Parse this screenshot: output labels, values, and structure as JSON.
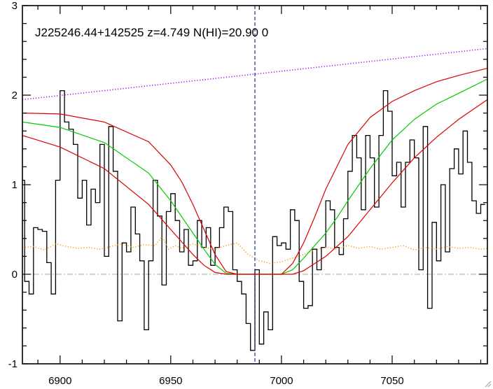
{
  "chart_data": {
    "type": "line",
    "title": "J225246.44+142525 z=4.749 N(HI)=20.90 0",
    "xlabel": "",
    "ylabel": "",
    "xlim": [
      6883,
      7093
    ],
    "ylim": [
      -1,
      3
    ],
    "x_ticks": [
      6900,
      6950,
      7000,
      7050
    ],
    "y_ticks": [
      -1,
      0,
      1,
      2,
      3
    ],
    "grid": false,
    "legend": "none",
    "vline_x": 6988,
    "series": [
      {
        "role": "flux",
        "style": "steps",
        "color": "#000000",
        "x": [
          6883,
          6885,
          6887,
          6889,
          6891,
          6893,
          6895,
          6897,
          6899,
          6901,
          6903,
          6905,
          6907,
          6909,
          6911,
          6913,
          6915,
          6917,
          6919,
          6921,
          6923,
          6925,
          6927,
          6929,
          6931,
          6933,
          6935,
          6937,
          6939,
          6941,
          6943,
          6945,
          6947,
          6949,
          6951,
          6953,
          6955,
          6957,
          6959,
          6961,
          6963,
          6965,
          6967,
          6969,
          6971,
          6973,
          6975,
          6977,
          6979,
          6981,
          6983,
          6985,
          6987,
          6989,
          6991,
          6993,
          6995,
          6997,
          6999,
          7001,
          7003,
          7005,
          7007,
          7009,
          7011,
          7013,
          7015,
          7017,
          7019,
          7021,
          7023,
          7025,
          7027,
          7029,
          7031,
          7033,
          7035,
          7037,
          7039,
          7041,
          7043,
          7045,
          7047,
          7049,
          7051,
          7053,
          7055,
          7057,
          7059,
          7061,
          7063,
          7065,
          7067,
          7069,
          7071,
          7073,
          7075,
          7077,
          7079,
          7081,
          7083,
          7085,
          7087,
          7089,
          7091
        ],
        "y": [
          1.05,
          -0.08,
          -0.22,
          0.52,
          0.5,
          0.48,
          0.13,
          -0.22,
          1.05,
          2.05,
          1.7,
          1.62,
          1.45,
          0.85,
          1.05,
          0.55,
          0.95,
          0.8,
          1.45,
          0.2,
          1.65,
          1.15,
          -0.52,
          0.35,
          0.25,
          0.75,
          0.45,
          0.15,
          -0.62,
          0.15,
          1.05,
          0.65,
          -0.12,
          0.7,
          0.9,
          0.6,
          0.25,
          0.5,
          0.1,
          0.15,
          0.6,
          0.3,
          0.52,
          0.1,
          0.3,
          0.52,
          0.75,
          0.7,
          0.05,
          -0.08,
          -0.22,
          -0.55,
          -0.85,
          0.05,
          -0.78,
          -0.42,
          -0.62,
          0.42,
          0.32,
          0.35,
          0.28,
          0.72,
          0.6,
          -0.08,
          -0.38,
          -0.35,
          0.28,
          0.05,
          0.3,
          0.82,
          0.72,
          0.3,
          0.22,
          0.62,
          1.15,
          1.55,
          1.3,
          0.72,
          1.55,
          1.3,
          0.75,
          1.55,
          2.05,
          1.82,
          1.1,
          1.25,
          0.75,
          1.25,
          1.5,
          1.3,
          0.05,
          1.65,
          -0.38,
          0.58,
          0.15,
          1.0,
          0.25,
          1.18,
          1.4,
          1.12,
          1.6,
          1.25,
          0.82,
          0.68,
          0.78
        ]
      },
      {
        "role": "error",
        "style": "dotted",
        "color": "#ff9900",
        "x": [
          6883,
          6888,
          6893,
          6898,
          6903,
          6908,
          6913,
          6918,
          6923,
          6928,
          6933,
          6938,
          6943,
          6946,
          6949,
          6952,
          6955,
          6960,
          6965,
          6970,
          6975,
          6980,
          6985,
          6990,
          6995,
          7000,
          7005,
          7010,
          7015,
          7020,
          7025,
          7030,
          7035,
          7040,
          7045,
          7050,
          7055,
          7060,
          7065,
          7070,
          7075,
          7080,
          7085,
          7090,
          7093
        ],
        "y": [
          0.3,
          0.31,
          0.27,
          0.34,
          0.31,
          0.29,
          0.3,
          0.28,
          0.31,
          0.34,
          0.3,
          0.33,
          0.32,
          0.42,
          0.28,
          0.32,
          0.29,
          0.34,
          0.3,
          0.28,
          0.32,
          0.35,
          0.22,
          0.15,
          0.12,
          0.14,
          0.18,
          0.22,
          0.27,
          0.3,
          0.28,
          0.32,
          0.29,
          0.31,
          0.28,
          0.3,
          0.32,
          0.27,
          0.3,
          0.28,
          0.31,
          0.29,
          0.3,
          0.28,
          0.29
        ]
      },
      {
        "role": "continuum",
        "style": "dotted",
        "color": "#9900ff",
        "x": [
          6883,
          7093
        ],
        "y": [
          1.95,
          2.52
        ]
      },
      {
        "role": "model",
        "style": "solid",
        "color": "#00cc00",
        "x": [
          6883,
          6900,
          6920,
          6940,
          6950,
          6955,
          6960,
          6965,
          6970,
          6975,
          6980,
          6990,
          7000,
          7005,
          7010,
          7015,
          7020,
          7025,
          7030,
          7035,
          7040,
          7050,
          7060,
          7070,
          7080,
          7093
        ],
        "y": [
          1.7,
          1.64,
          1.47,
          1.13,
          0.82,
          0.64,
          0.46,
          0.28,
          0.11,
          0.01,
          0.0,
          0.0,
          0.0,
          0.05,
          0.18,
          0.32,
          0.46,
          0.63,
          0.82,
          1.0,
          1.18,
          1.5,
          1.73,
          1.9,
          2.02,
          2.18
        ]
      },
      {
        "role": "upper",
        "style": "solid",
        "color": "#dd0000",
        "x": [
          6883,
          6900,
          6920,
          6940,
          6950,
          6955,
          6960,
          6965,
          6970,
          6975,
          6980,
          6990,
          7000,
          7005,
          7010,
          7015,
          7020,
          7025,
          7030,
          7040,
          7050,
          7060,
          7070,
          7080,
          7093
        ],
        "y": [
          1.8,
          1.79,
          1.7,
          1.48,
          1.22,
          1.03,
          0.78,
          0.5,
          0.22,
          0.03,
          0.0,
          0.0,
          0.0,
          0.12,
          0.35,
          0.64,
          0.95,
          1.2,
          1.45,
          1.75,
          1.93,
          2.05,
          2.15,
          2.22,
          2.3
        ]
      },
      {
        "role": "lower",
        "style": "solid",
        "color": "#dd0000",
        "x": [
          6883,
          6900,
          6920,
          6940,
          6950,
          6955,
          6960,
          6965,
          6970,
          6975,
          6980,
          6990,
          7000,
          7005,
          7010,
          7020,
          7030,
          7040,
          7050,
          7060,
          7070,
          7080,
          7093
        ],
        "y": [
          1.55,
          1.42,
          1.18,
          0.78,
          0.5,
          0.36,
          0.22,
          0.1,
          0.02,
          0.0,
          0.0,
          0.0,
          0.0,
          0.0,
          0.04,
          0.2,
          0.42,
          0.72,
          1.02,
          1.3,
          1.53,
          1.73,
          1.95
        ]
      }
    ]
  },
  "icons": {
    "corner": "resize-grip-icon"
  }
}
